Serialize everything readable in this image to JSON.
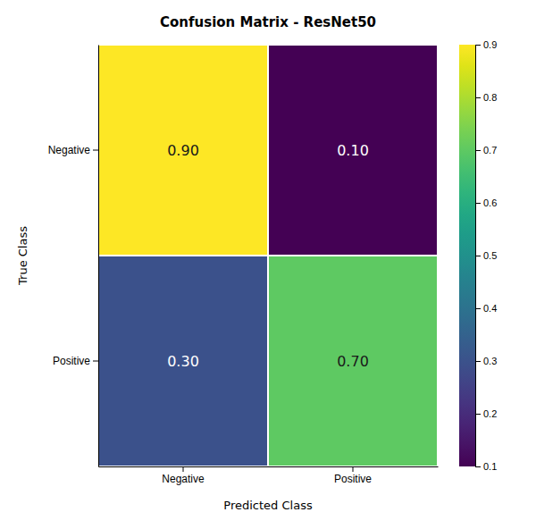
{
  "chart_data": {
    "type": "heatmap",
    "title": "Confusion Matrix - ResNet50",
    "xlabel": "Predicted Class",
    "ylabel": "True Class",
    "x_categories": [
      "Negative",
      "Positive"
    ],
    "y_categories": [
      "Negative",
      "Positive"
    ],
    "values": [
      [
        0.9,
        0.1
      ],
      [
        0.3,
        0.7
      ]
    ],
    "value_labels": [
      [
        "0.90",
        "0.10"
      ],
      [
        "0.30",
        "0.70"
      ]
    ],
    "data_labels": true,
    "color": "viridis",
    "colorbar_range": [
      0.1,
      0.9
    ],
    "colorbar_ticks": [
      0.1,
      0.2,
      0.3,
      0.4,
      0.5,
      0.6,
      0.7,
      0.8,
      0.9
    ]
  }
}
